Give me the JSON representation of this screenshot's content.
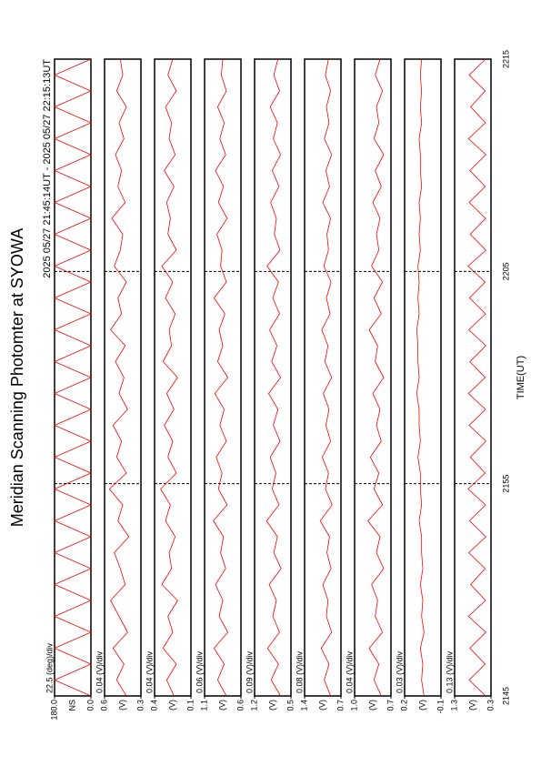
{
  "chart_data": {
    "type": "line",
    "title": "Meridian Scanning Photomter at SYOWA",
    "subtitle": "2025 05/27 21:45:14UT - 2025 05/27 22:15:13UT",
    "xlabel": "TIME(UT)",
    "xlim": [
      0,
      30
    ],
    "xticks": [
      {
        "value": 0,
        "label": "2145"
      },
      {
        "value": 10,
        "label": "2155"
      },
      {
        "value": 20,
        "label": "2205"
      },
      {
        "value": 30,
        "label": "2215"
      }
    ],
    "x": [
      0,
      0.75,
      1.5,
      2.25,
      3,
      3.75,
      4.5,
      5.25,
      6,
      6.75,
      7.5,
      8.25,
      9,
      9.75,
      10.5,
      11.25,
      12,
      12.75,
      13.5,
      14.25,
      15,
      15.75,
      16.5,
      17.25,
      18,
      18.75,
      19.5,
      20.25,
      21,
      21.75,
      22.5,
      23.25,
      24,
      24.75,
      25.5,
      26.25,
      27,
      27.75,
      28.5,
      29.25,
      30
    ],
    "series": [
      {
        "name": "22.5 (deg)/div",
        "unit": "NS",
        "color": "#ff0000",
        "ylim": [
          0,
          180
        ],
        "yticks": [
          {
            "value": 0,
            "label": "0.0"
          },
          {
            "value": 180,
            "label": "180.0"
          }
        ],
        "values": [
          0,
          180,
          0,
          180,
          0,
          180,
          0,
          180,
          0,
          180,
          0,
          180,
          0,
          180,
          0,
          180,
          0,
          180,
          0,
          180,
          0,
          180,
          0,
          180,
          0,
          180,
          0,
          180,
          0,
          180,
          0,
          180,
          0,
          180,
          0,
          180,
          0,
          180,
          0,
          180,
          0
        ]
      },
      {
        "name": "0.04 (V)/div",
        "unit": "(V)",
        "color": "#ff0000",
        "ylim": [
          0.3,
          0.6
        ],
        "yticks": [
          0.3,
          0.6
        ],
        "values": [
          0.42,
          0.5,
          0.44,
          0.53,
          0.41,
          0.48,
          0.55,
          0.43,
          0.47,
          0.52,
          0.4,
          0.49,
          0.45,
          0.56,
          0.42,
          0.5,
          0.46,
          0.53,
          0.41,
          0.48,
          0.44,
          0.51,
          0.43,
          0.55,
          0.46,
          0.49,
          0.42,
          0.52,
          0.47,
          0.45,
          0.54,
          0.43,
          0.49,
          0.46,
          0.51,
          0.44,
          0.48,
          0.42,
          0.5,
          0.45,
          0.47
        ]
      },
      {
        "name": "0.04 (V)/div",
        "unit": "(V)",
        "color": "#ff0000",
        "ylim": [
          0.1,
          0.4
        ],
        "yticks": [
          0.1,
          0.4
        ],
        "values": [
          0.24,
          0.3,
          0.22,
          0.33,
          0.25,
          0.29,
          0.21,
          0.34,
          0.26,
          0.28,
          0.23,
          0.31,
          0.27,
          0.35,
          0.22,
          0.29,
          0.25,
          0.32,
          0.24,
          0.3,
          0.21,
          0.33,
          0.26,
          0.28,
          0.23,
          0.31,
          0.25,
          0.34,
          0.22,
          0.29,
          0.27,
          0.3,
          0.24,
          0.32,
          0.23,
          0.28,
          0.26,
          0.31,
          0.22,
          0.29,
          0.25
        ]
      },
      {
        "name": "0.06 (V)/div",
        "unit": "(V)",
        "color": "#ff0000",
        "ylim": [
          0.6,
          1.1
        ],
        "yticks": [
          0.6,
          1.1
        ],
        "values": [
          0.8,
          0.92,
          0.83,
          0.97,
          0.78,
          0.9,
          0.85,
          0.95,
          0.81,
          0.88,
          0.84,
          0.98,
          0.79,
          0.91,
          0.86,
          0.94,
          0.8,
          0.89,
          0.83,
          0.96,
          0.78,
          0.92,
          0.85,
          0.9,
          0.82,
          0.97,
          0.8,
          0.88,
          0.86,
          0.93,
          0.79,
          0.91,
          0.84,
          0.95,
          0.81,
          0.89,
          0.83,
          0.92,
          0.8,
          0.87,
          0.85
        ]
      },
      {
        "name": "0.09 (V)/div",
        "unit": "(V)",
        "color": "#ff0000",
        "ylim": [
          0.5,
          1.2
        ],
        "yticks": [
          0.5,
          1.2
        ],
        "values": [
          0.7,
          0.88,
          0.74,
          0.95,
          0.72,
          0.85,
          0.78,
          0.92,
          0.69,
          0.83,
          0.76,
          0.97,
          0.73,
          0.86,
          0.79,
          0.9,
          0.71,
          0.84,
          0.75,
          0.93,
          0.7,
          0.87,
          0.77,
          0.91,
          0.72,
          0.85,
          0.74,
          0.96,
          0.71,
          0.82,
          0.78,
          0.89,
          0.73,
          0.86,
          0.7,
          0.84,
          0.76,
          0.9,
          0.72,
          0.83,
          0.75
        ]
      },
      {
        "name": "0.08 (V)/div",
        "unit": "(V)",
        "color": "#ff0000",
        "ylim": [
          0.7,
          1.4
        ],
        "yticks": [
          0.7,
          1.4
        ],
        "values": [
          0.9,
          1.02,
          0.93,
          1.08,
          0.88,
          0.98,
          0.95,
          1.05,
          0.89,
          0.97,
          0.92,
          1.1,
          0.87,
          1.0,
          0.94,
          1.06,
          0.9,
          0.99,
          0.93,
          1.04,
          0.88,
          1.01,
          0.95,
          1.07,
          0.91,
          0.98,
          0.89,
          1.03,
          0.94,
          0.97,
          0.9,
          1.05,
          0.92,
          0.99,
          0.88,
          1.02,
          0.93,
          0.98,
          0.9,
          1.0,
          0.94
        ]
      },
      {
        "name": "0.04 (V)/div",
        "unit": "(V)",
        "color": "#ff0000",
        "ylim": [
          0.7,
          1.0
        ],
        "yticks": [
          0.7,
          {
            "value": 1,
            "label": "1.0"
          }
        ],
        "values": [
          0.78,
          0.84,
          0.8,
          0.88,
          0.77,
          0.83,
          0.81,
          0.86,
          0.76,
          0.82,
          0.79,
          0.89,
          0.77,
          0.84,
          0.8,
          0.87,
          0.78,
          0.82,
          0.79,
          0.85,
          0.76,
          0.83,
          0.81,
          0.88,
          0.78,
          0.84,
          0.77,
          0.86,
          0.8,
          0.82,
          0.79,
          0.85,
          0.78,
          0.83,
          0.76,
          0.84,
          0.8,
          0.82,
          0.77,
          0.83,
          0.79
        ]
      },
      {
        "name": "0.03 (V)/div",
        "unit": "(V)",
        "color": "#ff0000",
        "ylim": [
          -0.1,
          0.2
        ],
        "yticks": [
          -0.1,
          0.2
        ],
        "values": [
          0.04,
          0.06,
          0.05,
          0.07,
          0.04,
          0.06,
          0.05,
          0.07,
          0.05,
          0.06,
          0.06,
          0.08,
          0.06,
          0.07,
          0.07,
          0.09,
          0.07,
          0.08,
          0.08,
          0.1,
          0.08,
          0.09,
          0.09,
          0.1,
          0.08,
          0.09,
          0.08,
          0.09,
          0.07,
          0.08,
          0.07,
          0.08,
          0.06,
          0.07,
          0.07,
          0.08,
          0.06,
          0.07,
          0.06,
          0.07,
          0.06
        ]
      },
      {
        "name": "0.13 (V)/div",
        "unit": "(V)",
        "color": "#ff0000",
        "ylim": [
          0.3,
          1.3
        ],
        "yticks": [
          0.3,
          1.3
        ],
        "values": [
          0.45,
          0.9,
          0.46,
          0.88,
          0.44,
          0.92,
          0.45,
          0.86,
          0.46,
          0.91,
          0.44,
          0.89,
          0.45,
          0.93,
          0.46,
          0.87,
          0.44,
          0.9,
          0.45,
          0.92,
          0.46,
          0.88,
          0.44,
          0.91,
          0.45,
          0.89,
          0.46,
          0.93,
          0.44,
          0.87,
          0.45,
          0.9,
          0.46,
          0.88,
          0.44,
          0.92,
          0.45,
          0.86,
          0.46,
          0.9,
          0.45
        ]
      }
    ]
  }
}
